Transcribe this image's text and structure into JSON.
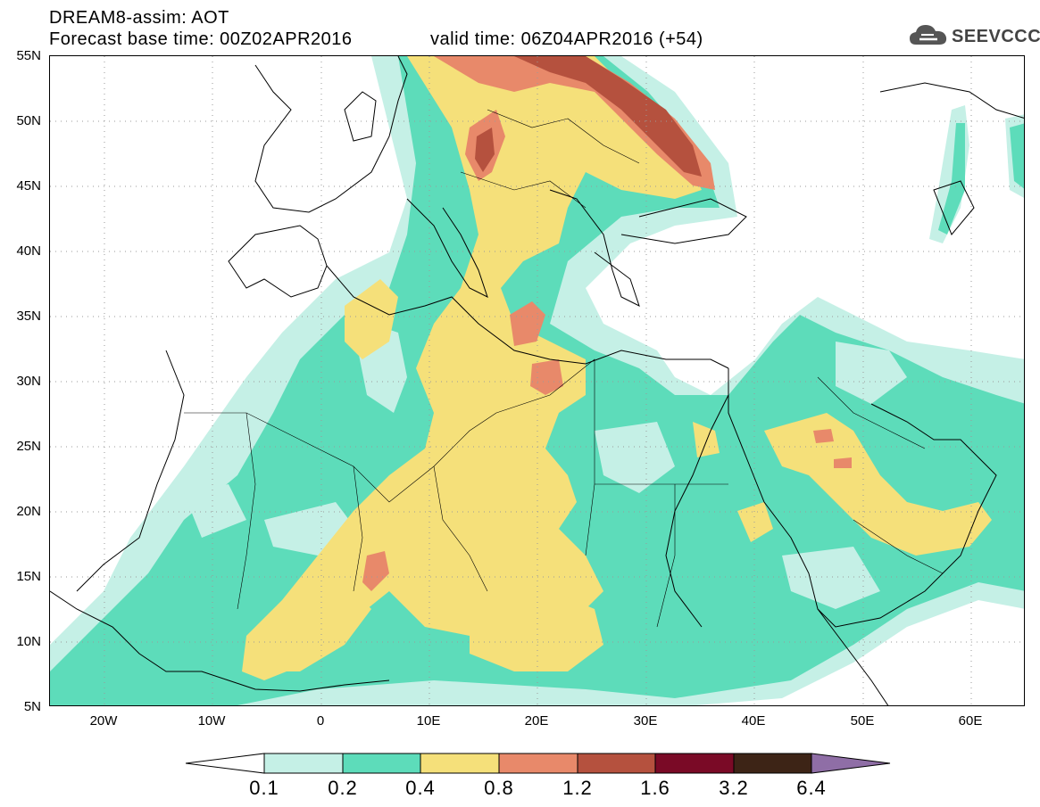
{
  "header": {
    "title": "DREAM8-assim: AOT",
    "base_time": "Forecast base time: 00Z02APR2016",
    "valid_time": "valid time: 06Z04APR2016 (+54)",
    "logo_text": "SEEVCCC"
  },
  "map": {
    "lat_labels": [
      "55N",
      "50N",
      "45N",
      "40N",
      "35N",
      "30N",
      "25N",
      "20N",
      "15N",
      "10N",
      "5N"
    ],
    "lon_labels": [
      "20W",
      "10W",
      "0",
      "10E",
      "20E",
      "30E",
      "40E",
      "50E",
      "60E"
    ],
    "grid": true
  },
  "colorbar": {
    "labels": [
      "0.1",
      "0.2",
      "0.4",
      "0.8",
      "1.2",
      "1.6",
      "3.2",
      "6.4"
    ],
    "colors": [
      "#ffffff",
      "#c5f0e6",
      "#5ddcba",
      "#f5e07a",
      "#e8896a",
      "#b5513e",
      "#7a0a26",
      "#3d2416",
      "#8f6ea6"
    ]
  }
}
